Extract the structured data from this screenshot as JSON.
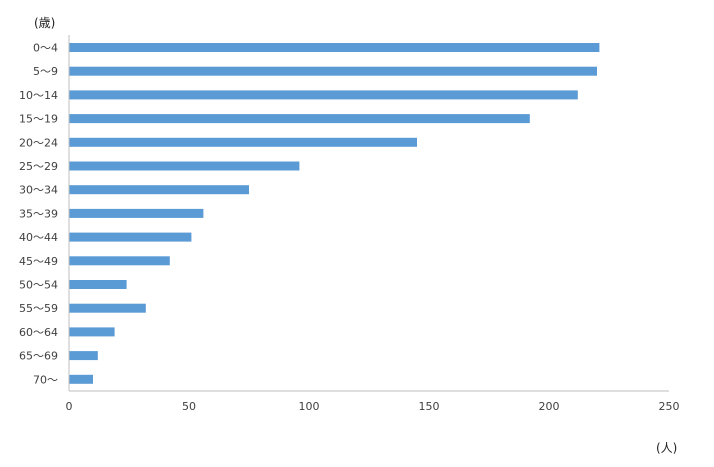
{
  "chart_data": {
    "type": "bar",
    "orientation": "horizontal",
    "y_unit": "(歳)",
    "x_unit": "(人)",
    "categories": [
      "0～4",
      "5～9",
      "10～14",
      "15～19",
      "20～24",
      "25～29",
      "30～34",
      "35～39",
      "40～44",
      "45～49",
      "50～54",
      "55～59",
      "60～64",
      "65～69",
      "70～"
    ],
    "values": [
      221,
      220,
      212,
      192,
      145,
      96,
      75,
      56,
      51,
      42,
      24,
      32,
      19,
      12,
      10
    ],
    "xlim": [
      0,
      250
    ],
    "xticks": [
      "0",
      "50",
      "100",
      "150",
      "200",
      "250"
    ],
    "grid": false,
    "legend": "none",
    "colors": {
      "bar": "#5b9bd5",
      "axis": "#bfbfbf",
      "text": "#404040"
    }
  }
}
